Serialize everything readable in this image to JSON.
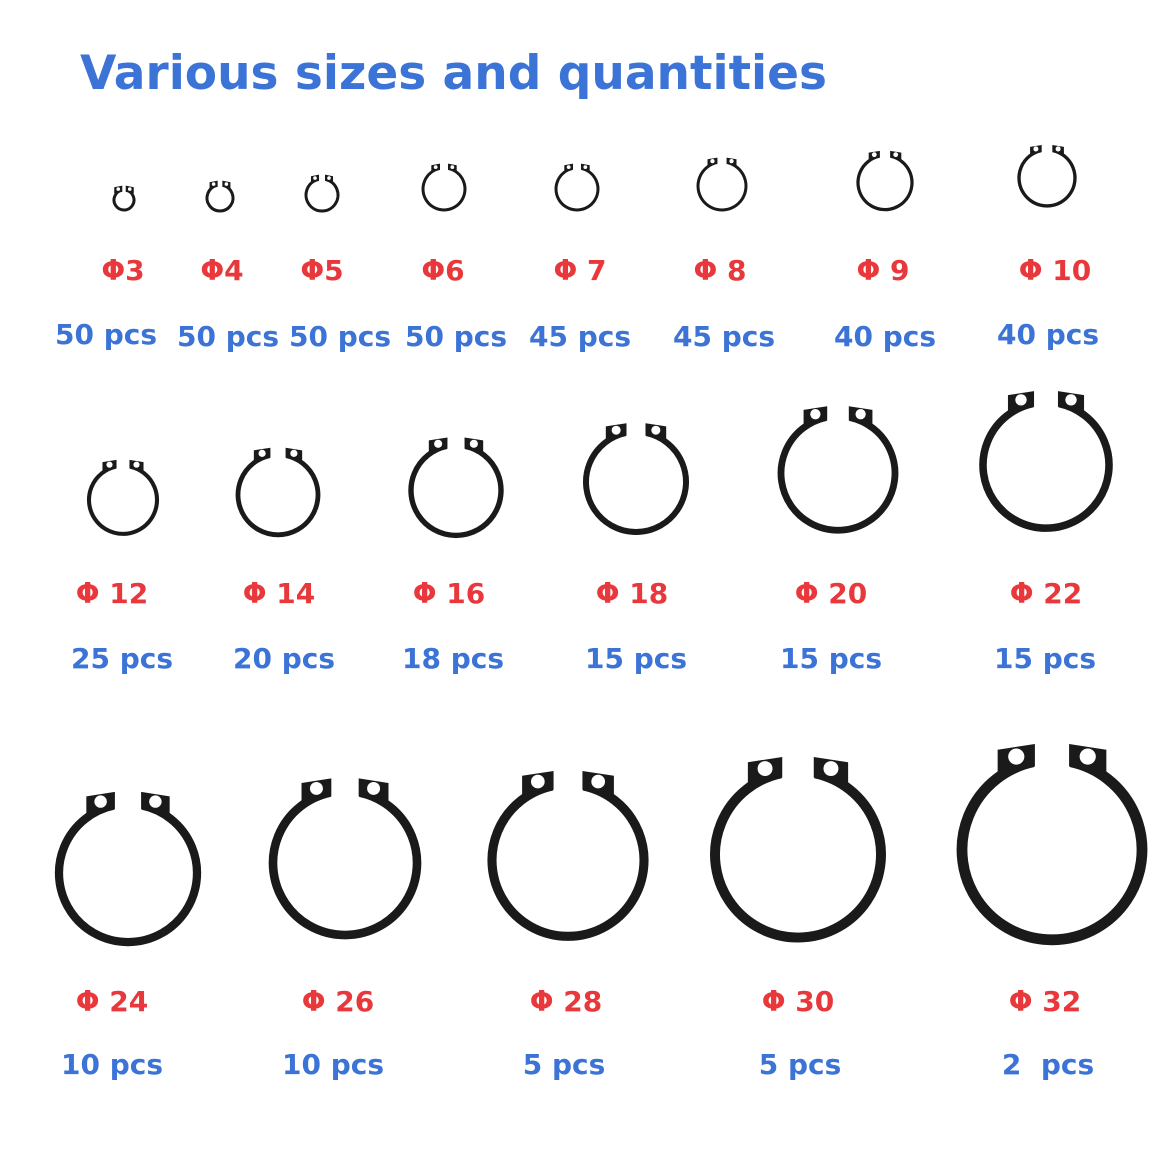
{
  "title": "Various sizes and quantities",
  "colors": {
    "title": "#3b73d6",
    "size": "#e8383b",
    "quantity": "#3b73d6",
    "ring": "#1a1a1a"
  },
  "icon": "circlip-ring-icon",
  "rows": [
    [
      {
        "size": "Φ3",
        "qty": "50 pcs"
      },
      {
        "size": "Φ4",
        "qty": "50 pcs"
      },
      {
        "size": "Φ5",
        "qty": "50 pcs"
      },
      {
        "size": "Φ6",
        "qty": "50 pcs"
      },
      {
        "size": "Φ 7",
        "qty": "45 pcs"
      },
      {
        "size": "Φ 8",
        "qty": "45 pcs"
      },
      {
        "size": "Φ 9",
        "qty": "40 pcs"
      },
      {
        "size": "Φ 10",
        "qty": "40 pcs"
      }
    ],
    [
      {
        "size": "Φ 12",
        "qty": "25 pcs"
      },
      {
        "size": "Φ 14",
        "qty": "20 pcs"
      },
      {
        "size": "Φ 16",
        "qty": "18 pcs"
      },
      {
        "size": "Φ 18",
        "qty": "15 pcs"
      },
      {
        "size": "Φ 20",
        "qty": "15 pcs"
      },
      {
        "size": "Φ 22",
        "qty": "15 pcs"
      }
    ],
    [
      {
        "size": "Φ 24",
        "qty": "10 pcs"
      },
      {
        "size": "Φ 26",
        "qty": "10 pcs"
      },
      {
        "size": "Φ 28",
        "qty": "5 pcs"
      },
      {
        "size": "Φ 30",
        "qty": "5 pcs"
      },
      {
        "size": "Φ 32",
        "qty": "2  pcs"
      }
    ]
  ]
}
